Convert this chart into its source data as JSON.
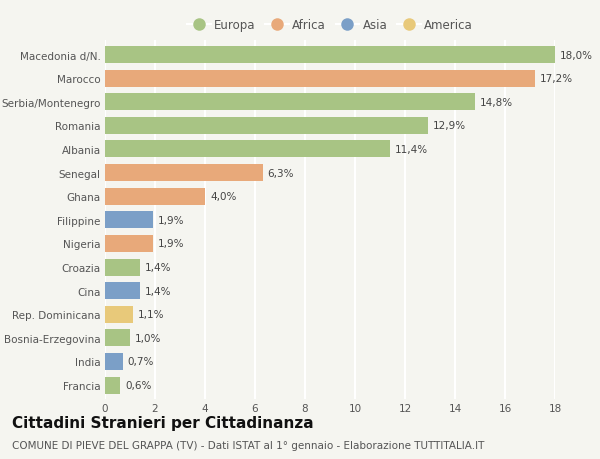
{
  "categories": [
    "Macedonia d/N.",
    "Marocco",
    "Serbia/Montenegro",
    "Romania",
    "Albania",
    "Senegal",
    "Ghana",
    "Filippine",
    "Nigeria",
    "Croazia",
    "Cina",
    "Rep. Dominicana",
    "Bosnia-Erzegovina",
    "India",
    "Francia"
  ],
  "values": [
    18.0,
    17.2,
    14.8,
    12.9,
    11.4,
    6.3,
    4.0,
    1.9,
    1.9,
    1.4,
    1.4,
    1.1,
    1.0,
    0.7,
    0.6
  ],
  "labels": [
    "18,0%",
    "17,2%",
    "14,8%",
    "12,9%",
    "11,4%",
    "6,3%",
    "4,0%",
    "1,9%",
    "1,9%",
    "1,4%",
    "1,4%",
    "1,1%",
    "1,0%",
    "0,7%",
    "0,6%"
  ],
  "colors": [
    "#a8c484",
    "#e8a97a",
    "#a8c484",
    "#a8c484",
    "#a8c484",
    "#e8a97a",
    "#e8a97a",
    "#7b9fc7",
    "#e8a97a",
    "#a8c484",
    "#7b9fc7",
    "#e8c97a",
    "#a8c484",
    "#7b9fc7",
    "#a8c484"
  ],
  "legend_labels": [
    "Europa",
    "Africa",
    "Asia",
    "America"
  ],
  "legend_colors": [
    "#a8c484",
    "#e8a97a",
    "#7b9fc7",
    "#e8c97a"
  ],
  "title": "Cittadini Stranieri per Cittadinanza",
  "subtitle": "COMUNE DI PIEVE DEL GRAPPA (TV) - Dati ISTAT al 1° gennaio - Elaborazione TUTTITALIA.IT",
  "xlim": [
    0,
    18
  ],
  "xticks": [
    0,
    2,
    4,
    6,
    8,
    10,
    12,
    14,
    16,
    18
  ],
  "background_color": "#f5f5f0",
  "grid_color": "#ffffff",
  "bar_height": 0.72,
  "title_fontsize": 11,
  "subtitle_fontsize": 7.5,
  "label_fontsize": 7.5,
  "tick_fontsize": 7.5,
  "legend_fontsize": 8.5
}
